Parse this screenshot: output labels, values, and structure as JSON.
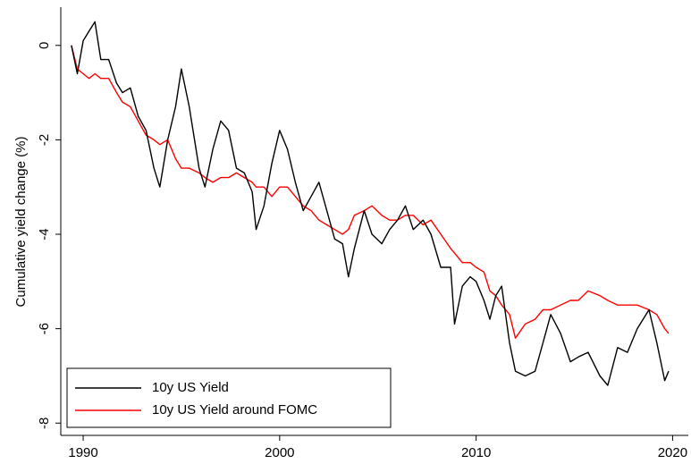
{
  "chart_data": {
    "type": "line",
    "y_label": "Cumulative yield change (%)",
    "x": [
      1989.4,
      1989.7,
      1990.0,
      1990.3,
      1990.6,
      1990.9,
      1991.3,
      1991.7,
      1992.0,
      1992.4,
      1992.8,
      1993.2,
      1993.6,
      1993.9,
      1994.3,
      1994.7,
      1995.0,
      1995.4,
      1995.9,
      1996.2,
      1996.6,
      1997.0,
      1997.4,
      1997.8,
      1998.2,
      1998.6,
      1998.8,
      1999.2,
      1999.6,
      2000.0,
      2000.4,
      2000.8,
      2001.2,
      2001.6,
      2002.0,
      2002.4,
      2002.8,
      2003.2,
      2003.5,
      2003.8,
      2004.3,
      2004.7,
      2005.2,
      2005.6,
      2006.0,
      2006.4,
      2006.8,
      2007.3,
      2007.7,
      2008.2,
      2008.7,
      2008.9,
      2009.3,
      2009.7,
      2010.0,
      2010.4,
      2010.7,
      2011.0,
      2011.3,
      2011.7,
      2012.0,
      2012.5,
      2013.0,
      2013.4,
      2013.8,
      2014.3,
      2014.8,
      2015.2,
      2015.7,
      2016.3,
      2016.7,
      2017.2,
      2017.7,
      2018.2,
      2018.8,
      2019.2,
      2019.6,
      2019.8
    ],
    "series": [
      {
        "name": "10y US Yield",
        "color": "#000000",
        "values": [
          0,
          -0.6,
          0.1,
          0.3,
          0.5,
          -0.3,
          -0.3,
          -0.8,
          -1.0,
          -0.9,
          -1.5,
          -1.8,
          -2.6,
          -3.0,
          -2.0,
          -1.3,
          -0.5,
          -1.3,
          -2.6,
          -3.0,
          -2.2,
          -1.6,
          -1.8,
          -2.6,
          -2.7,
          -3.1,
          -3.9,
          -3.4,
          -2.5,
          -1.8,
          -2.2,
          -2.9,
          -3.5,
          -3.2,
          -2.9,
          -3.5,
          -4.1,
          -4.2,
          -4.9,
          -4.3,
          -3.5,
          -4.0,
          -4.2,
          -3.9,
          -3.7,
          -3.4,
          -3.9,
          -3.7,
          -4.0,
          -4.7,
          -4.7,
          -5.9,
          -5.1,
          -4.9,
          -5.0,
          -5.4,
          -5.8,
          -5.3,
          -5.1,
          -6.3,
          -6.9,
          -7.0,
          -6.9,
          -6.3,
          -5.7,
          -6.1,
          -6.7,
          -6.6,
          -6.5,
          -7.0,
          -7.2,
          -6.4,
          -6.5,
          -6.0,
          -5.6,
          -6.3,
          -7.1,
          -6.9
        ]
      },
      {
        "name": "10y US Yield around FOMC",
        "color": "#ff0000",
        "values": [
          0,
          -0.5,
          -0.6,
          -0.7,
          -0.6,
          -0.7,
          -0.7,
          -1.0,
          -1.2,
          -1.3,
          -1.6,
          -1.9,
          -2.0,
          -2.1,
          -2.0,
          -2.4,
          -2.6,
          -2.6,
          -2.7,
          -2.8,
          -2.9,
          -2.8,
          -2.8,
          -2.7,
          -2.8,
          -2.9,
          -3.0,
          -3.0,
          -3.2,
          -3.0,
          -3.0,
          -3.2,
          -3.4,
          -3.5,
          -3.7,
          -3.8,
          -3.9,
          -4.0,
          -3.9,
          -3.6,
          -3.5,
          -3.4,
          -3.6,
          -3.7,
          -3.7,
          -3.6,
          -3.6,
          -3.8,
          -3.7,
          -4.0,
          -4.3,
          -4.4,
          -4.6,
          -4.6,
          -4.7,
          -4.8,
          -5.2,
          -5.3,
          -5.5,
          -5.7,
          -6.2,
          -5.9,
          -5.8,
          -5.6,
          -5.6,
          -5.5,
          -5.4,
          -5.4,
          -5.2,
          -5.3,
          -5.4,
          -5.5,
          -5.5,
          -5.5,
          -5.6,
          -5.7,
          -6.0,
          -6.1
        ]
      }
    ],
    "xlim": [
      1988.86,
      2020.8
    ],
    "ylim": [
      -8.26,
      0.81
    ],
    "xticks": [
      1990,
      2000,
      2010,
      2020
    ],
    "yticks": [
      0,
      -2,
      -4,
      -6,
      -8
    ],
    "legend": "lower left"
  }
}
